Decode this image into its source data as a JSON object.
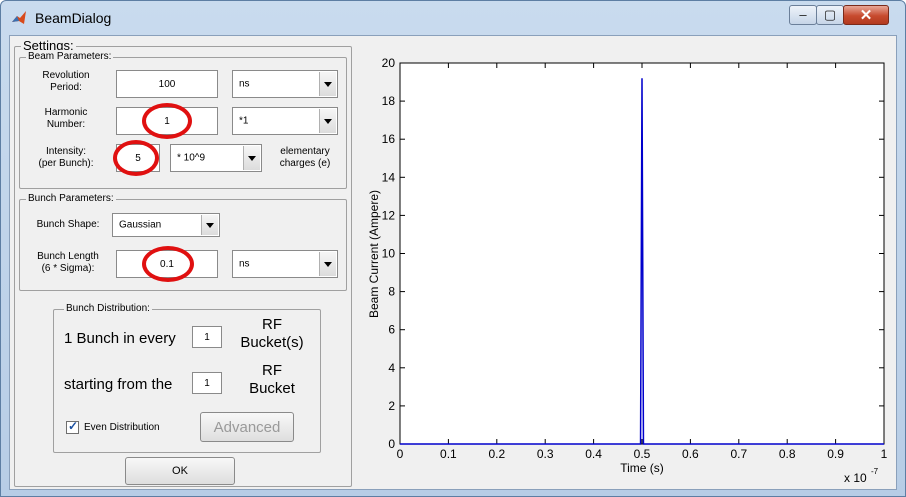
{
  "window": {
    "title": "BeamDialog",
    "controls": {
      "minimize": "–",
      "maximize": "▢",
      "close": "✕"
    }
  },
  "settings": {
    "title": "Settings:",
    "beam_parameters": {
      "title": "Beam Parameters:",
      "revolution_period": {
        "label_line1": "Revolution",
        "label_line2": "Period:",
        "value": "100",
        "unit": "ns"
      },
      "harmonic_number": {
        "label_line1": "Harmonic",
        "label_line2": "Number:",
        "value": "1",
        "unit": "*1"
      },
      "intensity": {
        "label_line1": "Intensity:",
        "label_line2": "(per Bunch):",
        "value": "5",
        "unit": "* 10^9",
        "suffix_line1": "elementary",
        "suffix_line2": "charges (e)"
      }
    },
    "bunch_parameters": {
      "title": "Bunch Parameters:",
      "bunch_shape": {
        "label": "Bunch Shape:",
        "value": "Gaussian"
      },
      "bunch_length": {
        "label_line1": "Bunch Length",
        "label_line2": "(6 * Sigma):",
        "value": "0.1",
        "unit": "ns"
      }
    },
    "bunch_distribution": {
      "title": "Bunch Distribution:",
      "every_prefix": "1 Bunch in every",
      "every_value": "1",
      "every_suffix_line1": "RF",
      "every_suffix_line2": "Bucket(s)",
      "start_prefix": "starting from the",
      "start_value": "1",
      "start_suffix_line1": "RF",
      "start_suffix_line2": "Bucket",
      "even_distribution": {
        "label": "Even Distribution",
        "checked": true
      },
      "advanced_label": "Advanced"
    },
    "ok_label": "OK"
  },
  "accent_color": "#e01010",
  "chart_data": {
    "type": "line",
    "xlabel": "Time (s)",
    "ylabel": "Beam Current (Ampere)",
    "x_multiplier_label": "x 10",
    "x_multiplier_exp": "-7",
    "xlim": [
      0,
      1
    ],
    "ylim": [
      0,
      20
    ],
    "x_ticks": [
      0,
      0.1,
      0.2,
      0.3,
      0.4,
      0.5,
      0.6,
      0.7,
      0.8,
      0.9,
      1
    ],
    "x_tick_labels": [
      "0",
      "0.1",
      "0.2",
      "0.3",
      "0.4",
      "0.5",
      "0.6",
      "0.7",
      "0.8",
      "0.9",
      "1"
    ],
    "y_ticks": [
      0,
      2,
      4,
      6,
      8,
      10,
      12,
      14,
      16,
      18,
      20
    ],
    "y_tick_labels": [
      "0",
      "2",
      "4",
      "6",
      "8",
      "10",
      "12",
      "14",
      "16",
      "18",
      "20"
    ],
    "line_color": "#0000cc",
    "series": [
      {
        "x": [
          0,
          0.497,
          0.4985,
          0.5,
          0.5015,
          0.503,
          1
        ],
        "y": [
          0,
          0,
          9.6,
          19.2,
          9.6,
          0,
          0
        ]
      }
    ],
    "grid": false
  }
}
